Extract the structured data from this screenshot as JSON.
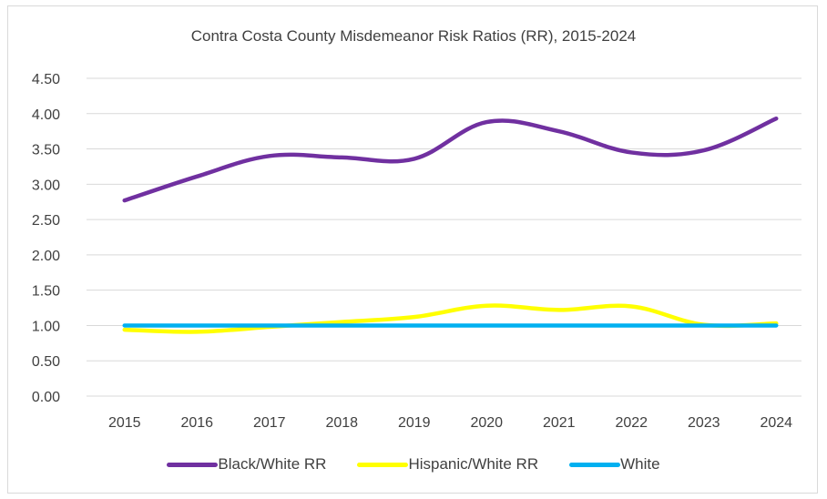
{
  "chart_data": {
    "type": "line",
    "title": "Contra Costa County Misdemeanor Risk Ratios (RR), 2015-2024",
    "categories": [
      "2015",
      "2016",
      "2017",
      "2018",
      "2019",
      "2020",
      "2021",
      "2022",
      "2023",
      "2024"
    ],
    "series": [
      {
        "name": "Black/White RR",
        "color": "#7030a0",
        "values": [
          2.77,
          3.11,
          3.4,
          3.38,
          3.36,
          3.88,
          3.75,
          3.45,
          3.48,
          3.93
        ]
      },
      {
        "name": "Hispanic/White RR",
        "color": "#ffff00",
        "values": [
          0.94,
          0.91,
          0.98,
          1.05,
          1.12,
          1.28,
          1.22,
          1.27,
          1.01,
          1.03
        ]
      },
      {
        "name": "White",
        "color": "#00b0f0",
        "values": [
          1.0,
          1.0,
          1.0,
          1.0,
          1.0,
          1.0,
          1.0,
          1.0,
          1.0,
          1.0
        ]
      }
    ],
    "yticks": [
      "0.00",
      "0.50",
      "1.00",
      "1.50",
      "2.00",
      "2.50",
      "3.00",
      "3.50",
      "4.00",
      "4.50"
    ],
    "ylim": [
      0,
      4.5
    ],
    "grid": true,
    "legend_position": "bottom"
  }
}
